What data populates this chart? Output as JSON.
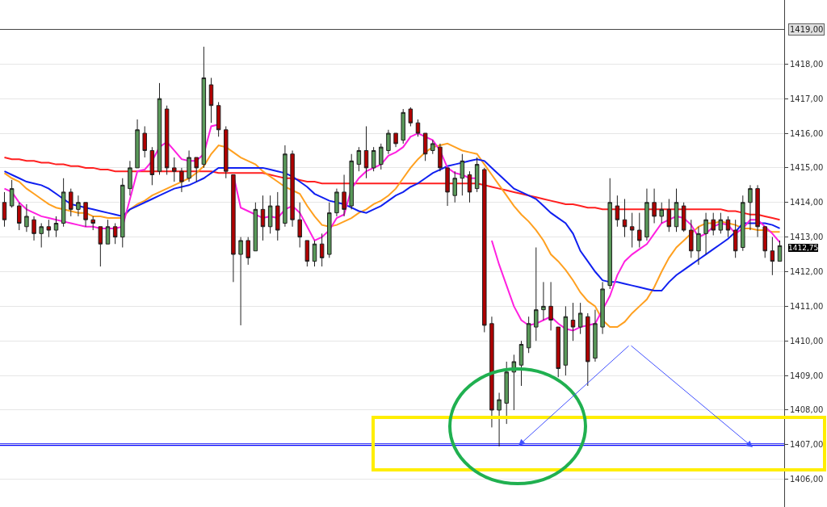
{
  "chart_data": {
    "type": "candlestick",
    "categories": [
      null,
      null,
      null,
      null,
      null,
      null,
      null,
      null,
      null,
      null,
      null,
      null,
      null,
      null,
      null,
      null,
      null,
      null,
      null,
      null,
      null,
      null,
      null,
      null,
      null,
      null,
      null,
      null,
      null,
      null,
      null,
      null,
      null,
      null,
      null,
      null,
      null,
      null,
      null,
      null,
      null,
      null,
      null,
      null,
      null,
      null,
      null,
      null,
      null,
      null,
      null,
      null,
      null,
      null,
      null,
      null,
      null,
      null,
      null,
      null,
      null,
      null,
      null,
      null,
      null,
      null,
      null,
      null,
      null,
      null,
      null,
      null,
      null,
      null,
      null,
      null,
      null,
      null,
      null,
      null,
      null,
      null,
      null,
      null,
      null,
      null,
      null,
      null,
      null,
      null,
      null,
      null,
      null,
      null,
      null,
      null,
      null,
      null,
      null,
      null,
      null,
      null,
      null,
      null,
      null,
      null
    ],
    "ohlc": [
      [
        1414.0,
        1414.3,
        1413.3,
        1413.5
      ],
      [
        1413.9,
        1414.65,
        1413.85,
        1414.4
      ],
      [
        1413.9,
        1414.0,
        1413.2,
        1413.4
      ],
      [
        1413.3,
        1413.95,
        1413.15,
        1413.6
      ],
      [
        1413.5,
        1413.6,
        1412.9,
        1413.1
      ],
      [
        1413.1,
        1413.4,
        1412.7,
        1413.3
      ],
      [
        1413.3,
        1413.5,
        1413.0,
        1413.2
      ],
      [
        1413.2,
        1413.6,
        1413.0,
        1413.4
      ],
      [
        1413.4,
        1414.7,
        1413.3,
        1414.3
      ],
      [
        1414.3,
        1414.4,
        1413.6,
        1413.8
      ],
      [
        1413.8,
        1414.2,
        1413.6,
        1414.0
      ],
      [
        1414.0,
        1414.0,
        1413.3,
        1413.5
      ],
      [
        1413.5,
        1413.6,
        1413.2,
        1413.4
      ],
      [
        1413.3,
        1413.3,
        1412.15,
        1412.8
      ],
      [
        1412.8,
        1413.5,
        1412.8,
        1413.3
      ],
      [
        1413.3,
        1413.4,
        1412.8,
        1413.0
      ],
      [
        1413.0,
        1414.7,
        1412.7,
        1414.5
      ],
      [
        1414.4,
        1415.2,
        1414.2,
        1415.0
      ],
      [
        1415.0,
        1416.4,
        1415.0,
        1416.1
      ],
      [
        1416.0,
        1416.2,
        1415.3,
        1415.5
      ],
      [
        1415.5,
        1415.6,
        1414.5,
        1414.8
      ],
      [
        1414.9,
        1417.45,
        1414.8,
        1417.0
      ],
      [
        1416.7,
        1416.8,
        1414.8,
        1415.0
      ],
      [
        1415.0,
        1415.3,
        1414.6,
        1414.9
      ],
      [
        1414.9,
        1415.0,
        1414.3,
        1414.6
      ],
      [
        1414.7,
        1415.5,
        1414.6,
        1415.3
      ],
      [
        1415.3,
        1415.3,
        1414.6,
        1415.0
      ],
      [
        1415.1,
        1418.5,
        1415.0,
        1417.6
      ],
      [
        1417.4,
        1417.6,
        1416.3,
        1416.8
      ],
      [
        1416.8,
        1416.9,
        1415.9,
        1416.1
      ],
      [
        1416.1,
        1416.2,
        1414.7,
        1414.9
      ],
      [
        1414.8,
        1414.8,
        1411.7,
        1412.5
      ],
      [
        1412.5,
        1413.0,
        1410.45,
        1412.9
      ],
      [
        1412.9,
        1413.0,
        1412.2,
        1412.4
      ],
      [
        1412.6,
        1414.0,
        1412.6,
        1413.8
      ],
      [
        1413.8,
        1414.2,
        1412.9,
        1413.3
      ],
      [
        1413.3,
        1414.2,
        1413.1,
        1413.9
      ],
      [
        1413.9,
        1414.3,
        1412.9,
        1413.2
      ],
      [
        1413.4,
        1415.65,
        1413.3,
        1415.4
      ],
      [
        1415.4,
        1415.5,
        1413.3,
        1413.5
      ],
      [
        1413.5,
        1414.0,
        1412.7,
        1413.0
      ],
      [
        1412.9,
        1412.9,
        1412.15,
        1412.3
      ],
      [
        1412.3,
        1412.9,
        1412.15,
        1412.8
      ],
      [
        1412.8,
        1413.1,
        1412.15,
        1412.4
      ],
      [
        1412.5,
        1414.0,
        1412.4,
        1413.7
      ],
      [
        1413.7,
        1414.4,
        1413.6,
        1414.3
      ],
      [
        1414.3,
        1414.8,
        1413.6,
        1413.8
      ],
      [
        1413.9,
        1415.4,
        1413.8,
        1415.2
      ],
      [
        1415.1,
        1415.6,
        1414.9,
        1415.5
      ],
      [
        1415.5,
        1416.2,
        1414.7,
        1415.0
      ],
      [
        1415.0,
        1415.6,
        1414.9,
        1415.5
      ],
      [
        1415.1,
        1415.7,
        1414.95,
        1415.6
      ],
      [
        1415.5,
        1416.1,
        1415.4,
        1416.0
      ],
      [
        1416.0,
        1416.0,
        1415.6,
        1415.7
      ],
      [
        1415.8,
        1416.7,
        1415.7,
        1416.6
      ],
      [
        1416.7,
        1416.75,
        1416.2,
        1416.3
      ],
      [
        1416.3,
        1416.4,
        1415.9,
        1416.0
      ],
      [
        1416.0,
        1416.0,
        1415.2,
        1415.4
      ],
      [
        1415.5,
        1415.8,
        1415.4,
        1415.7
      ],
      [
        1415.6,
        1415.7,
        1414.9,
        1415.0
      ],
      [
        1415.0,
        1415.0,
        1413.9,
        1414.3
      ],
      [
        1414.2,
        1414.9,
        1414.0,
        1414.7
      ],
      [
        1414.7,
        1415.4,
        1414.2,
        1415.2
      ],
      [
        1414.8,
        1414.9,
        1414.0,
        1414.3
      ],
      [
        1414.4,
        1415.3,
        1414.3,
        1415.1
      ],
      [
        1414.95,
        1415.0,
        1410.25,
        1410.45
      ],
      [
        1410.5,
        1410.7,
        1407.5,
        1408.0
      ],
      [
        1408.0,
        1408.5,
        1406.95,
        1408.3
      ],
      [
        1408.2,
        1409.4,
        1407.6,
        1409.1
      ],
      [
        1409.1,
        1409.6,
        1408.0,
        1409.4
      ],
      [
        1409.3,
        1410.0,
        1408.7,
        1409.9
      ],
      [
        1409.8,
        1410.7,
        1409.65,
        1410.5
      ],
      [
        1410.4,
        1412.7,
        1410.0,
        1410.9
      ],
      [
        1410.9,
        1411.7,
        1410.6,
        1411.0
      ],
      [
        1411.0,
        1411.7,
        1410.3,
        1410.6
      ],
      [
        1410.4,
        1410.4,
        1408.95,
        1409.2
      ],
      [
        1409.3,
        1411.0,
        1409.0,
        1410.7
      ],
      [
        1410.6,
        1411.1,
        1410.0,
        1410.4
      ],
      [
        1410.4,
        1411.1,
        1410.2,
        1410.8
      ],
      [
        1410.7,
        1410.8,
        1408.7,
        1409.4
      ],
      [
        1409.5,
        1410.9,
        1409.4,
        1410.5
      ],
      [
        1410.4,
        1411.7,
        1410.2,
        1411.5
      ],
      [
        1411.6,
        1414.7,
        1411.5,
        1414.0
      ],
      [
        1413.9,
        1414.2,
        1413.3,
        1413.5
      ],
      [
        1413.5,
        1414.1,
        1413.0,
        1413.3
      ],
      [
        1413.3,
        1413.7,
        1412.7,
        1413.2
      ],
      [
        1413.2,
        1413.7,
        1412.7,
        1412.9
      ],
      [
        1413.0,
        1414.4,
        1412.9,
        1414.0
      ],
      [
        1414.0,
        1414.4,
        1413.4,
        1413.6
      ],
      [
        1413.6,
        1414.0,
        1413.4,
        1413.8
      ],
      [
        1413.8,
        1414.1,
        1413.15,
        1413.3
      ],
      [
        1413.3,
        1414.4,
        1413.15,
        1414.0
      ],
      [
        1413.9,
        1414.0,
        1413.15,
        1413.2
      ],
      [
        1413.2,
        1413.5,
        1412.4,
        1412.6
      ],
      [
        1412.6,
        1413.3,
        1412.2,
        1413.1
      ],
      [
        1413.1,
        1413.7,
        1412.5,
        1413.5
      ],
      [
        1413.5,
        1413.7,
        1413.05,
        1413.2
      ],
      [
        1413.2,
        1413.7,
        1413.1,
        1413.5
      ],
      [
        1413.5,
        1413.6,
        1413.0,
        1413.2
      ],
      [
        1413.2,
        1413.5,
        1412.4,
        1412.6
      ],
      [
        1412.7,
        1414.2,
        1412.6,
        1414.0
      ],
      [
        1414.0,
        1414.5,
        1413.2,
        1414.4
      ],
      [
        1414.4,
        1414.5,
        1413.0,
        1413.3
      ],
      [
        1413.3,
        1413.3,
        1412.4,
        1412.6
      ],
      [
        1412.6,
        1413.0,
        1411.9,
        1412.3
      ],
      [
        1412.3,
        1412.9,
        1412.3,
        1412.75
      ]
    ],
    "series": [
      {
        "type": "line",
        "color": "#ff2020",
        "values": [
          1415.3,
          1415.25,
          1415.25,
          1415.2,
          1415.2,
          1415.15,
          1415.15,
          1415.1,
          1415.1,
          1415.05,
          1415.05,
          1415.0,
          1415.0,
          1414.95,
          1414.95,
          1414.9,
          1414.9,
          1414.9,
          1414.9,
          1414.9,
          1414.9,
          1414.9,
          1414.9,
          1414.9,
          1414.9,
          1414.9,
          1414.9,
          1414.9,
          1414.9,
          1414.85,
          1414.85,
          1414.85,
          1414.85,
          1414.85,
          1414.85,
          1414.85,
          1414.8,
          1414.75,
          1414.7,
          1414.7,
          1414.65,
          1414.6,
          1414.6,
          1414.55,
          1414.55,
          1414.55,
          1414.55,
          1414.55,
          1414.55,
          1414.55,
          1414.55,
          1414.55,
          1414.55,
          1414.55,
          1414.55,
          1414.55,
          1414.55,
          1414.55,
          1414.55,
          1414.55,
          1414.55,
          1414.55,
          1414.55,
          1414.55,
          1414.55,
          1414.5,
          1414.45,
          1414.4,
          1414.35,
          1414.3,
          1414.25,
          1414.2,
          1414.15,
          1414.1,
          1414.05,
          1414.0,
          1413.95,
          1413.95,
          1413.9,
          1413.85,
          1413.85,
          1413.8,
          1413.8,
          1413.8,
          1413.8,
          1413.8,
          1413.8,
          1413.8,
          1413.8,
          1413.8,
          1413.8,
          1413.8,
          1413.8,
          1413.8,
          1413.8,
          1413.8,
          1413.8,
          1413.8,
          1413.75,
          1413.75,
          1413.7,
          1413.65,
          1413.65,
          1413.6,
          1413.55,
          1413.5
        ]
      },
      {
        "type": "line",
        "color": "#ffa020",
        "values": [
          1414.85,
          1414.7,
          1414.6,
          1414.4,
          1414.25,
          1414.1,
          1413.95,
          1413.85,
          1413.8,
          1413.75,
          1413.7,
          1413.7,
          1413.6,
          1413.6,
          1413.55,
          1413.55,
          1413.55,
          1413.8,
          1413.95,
          1414.05,
          1414.2,
          1414.3,
          1414.4,
          1414.5,
          1414.6,
          1414.7,
          1414.85,
          1415.05,
          1415.4,
          1415.65,
          1415.6,
          1415.45,
          1415.3,
          1415.2,
          1415.1,
          1414.9,
          1414.75,
          1414.6,
          1414.45,
          1414.35,
          1414.25,
          1413.9,
          1413.6,
          1413.35,
          1413.3,
          1413.35,
          1413.45,
          1413.55,
          1413.7,
          1413.8,
          1413.95,
          1414.05,
          1414.2,
          1414.4,
          1414.7,
          1415.0,
          1415.25,
          1415.45,
          1415.6,
          1415.65,
          1415.7,
          1415.6,
          1415.5,
          1415.45,
          1415.4,
          1415.1,
          1414.8,
          1414.5,
          1414.2,
          1413.9,
          1413.65,
          1413.45,
          1413.2,
          1412.9,
          1412.5,
          1412.3,
          1412.05,
          1411.75,
          1411.4,
          1411.15,
          1411.0,
          1410.6,
          1410.4,
          1410.4,
          1410.55,
          1410.8,
          1411.0,
          1411.2,
          1411.55,
          1412.0,
          1412.4,
          1412.7,
          1412.9,
          1413.1,
          1413.3,
          1413.4,
          1413.4,
          1413.45,
          1413.4,
          1413.35,
          1413.25,
          1413.25,
          1413.2,
          1413.2,
          1413.15,
          1413.15
        ]
      },
      {
        "type": "line",
        "color": "#1020f0",
        "values": [
          1414.9,
          1414.8,
          1414.7,
          1414.6,
          1414.55,
          1414.5,
          1414.4,
          1414.25,
          1414.1,
          1413.95,
          1413.9,
          1413.85,
          1413.8,
          1413.75,
          1413.7,
          1413.65,
          1413.6,
          1413.8,
          1413.9,
          1414.0,
          1414.1,
          1414.2,
          1414.3,
          1414.4,
          1414.45,
          1414.5,
          1414.6,
          1414.7,
          1414.85,
          1415.0,
          1415.0,
          1415.0,
          1415.0,
          1415.0,
          1415.0,
          1415.0,
          1414.95,
          1414.9,
          1414.85,
          1414.75,
          1414.6,
          1414.45,
          1414.25,
          1414.15,
          1414.05,
          1414.0,
          1413.95,
          1413.85,
          1413.75,
          1413.7,
          1413.8,
          1413.9,
          1414.05,
          1414.2,
          1414.3,
          1414.45,
          1414.55,
          1414.7,
          1414.85,
          1414.95,
          1415.05,
          1415.1,
          1415.15,
          1415.2,
          1415.25,
          1415.2,
          1415.0,
          1414.8,
          1414.6,
          1414.4,
          1414.3,
          1414.2,
          1414.1,
          1413.9,
          1413.7,
          1413.55,
          1413.4,
          1413.1,
          1412.6,
          1412.3,
          1412.0,
          1411.75,
          1411.7,
          1411.7,
          1411.65,
          1411.6,
          1411.55,
          1411.5,
          1411.45,
          1411.45,
          1411.7,
          1411.9,
          1412.05,
          1412.2,
          1412.35,
          1412.5,
          1412.65,
          1412.8,
          1412.95,
          1413.15,
          1413.4,
          1413.4,
          1413.4,
          1413.4,
          1413.35,
          1413.25
        ]
      },
      {
        "type": "line",
        "color": "#ff20e0",
        "values": [
          1414.4,
          1414.3,
          1414.0,
          1413.8,
          1413.7,
          1413.6,
          1413.55,
          1413.5,
          1413.45,
          1413.4,
          1413.35,
          1413.3,
          1413.3,
          1413.25,
          1413.25,
          1413.25,
          1413.3,
          1414.1,
          1414.9,
          1414.95,
          1415.2,
          1415.6,
          1415.75,
          1415.5,
          1415.25,
          1415.2,
          1415.2,
          1415.4,
          1416.2,
          1416.25,
          null,
          1414.8,
          1413.85,
          1413.75,
          1413.65,
          1413.55,
          1413.6,
          1413.55,
          1413.8,
          1413.9,
          1413.7,
          1413.3,
          1412.9,
          1413.0,
          1413.2,
          1413.55,
          1413.65,
          1414.4,
          1414.7,
          1414.9,
          1415.0,
          1415.1,
          1415.35,
          1415.45,
          1415.6,
          1415.9,
          1416.0,
          1415.9,
          1415.8,
          1415.5,
          1415.0,
          1414.85,
          1414.8,
          1414.7,
          1414.7,
          null,
          1412.9,
          1412.2,
          1411.6,
          1411.0,
          1410.6,
          1410.45,
          1410.5,
          1410.6,
          1410.7,
          1410.5,
          1410.35,
          1410.3,
          1410.4,
          1410.45,
          1410.5,
          1410.9,
          1411.3,
          1411.9,
          1412.3,
          1412.5,
          1412.65,
          1412.8,
          1413.1,
          1413.4,
          1413.5,
          1413.6,
          1413.55,
          1413.35,
          1413.0,
          1413.1,
          1413.3,
          1413.4,
          1413.35,
          1413.1,
          1413.25,
          1413.5,
          1413.5,
          1413.3,
          1413.1,
          1412.85
        ]
      }
    ],
    "ylim": [
      1405.2,
      1419.85
    ],
    "yticks": [
      {
        "value": 1406,
        "label": "1406,00"
      },
      {
        "value": 1407,
        "label": "1407,00"
      },
      {
        "value": 1408,
        "label": "1408,00"
      },
      {
        "value": 1409,
        "label": "1409,00"
      },
      {
        "value": 1410,
        "label": "1410,00"
      },
      {
        "value": 1411,
        "label": "1411,00"
      },
      {
        "value": 1412,
        "label": "1412,00"
      },
      {
        "value": 1413,
        "label": "1413,00"
      },
      {
        "value": 1414,
        "label": "1414,00"
      },
      {
        "value": 1415,
        "label": "1415,00"
      },
      {
        "value": 1416,
        "label": "1416,00"
      },
      {
        "value": 1417,
        "label": "1417,00"
      },
      {
        "value": 1418,
        "label": "1418,00"
      }
    ],
    "ref_lines": [
      {
        "axis": "y",
        "value": 1419,
        "label": "1419,00",
        "color": "#404040"
      },
      {
        "axis": "y",
        "value": 1407,
        "color": "#0000ff"
      }
    ],
    "annotations": [
      "1412,75"
    ],
    "grid": "y",
    "tick_labels": "y"
  }
}
